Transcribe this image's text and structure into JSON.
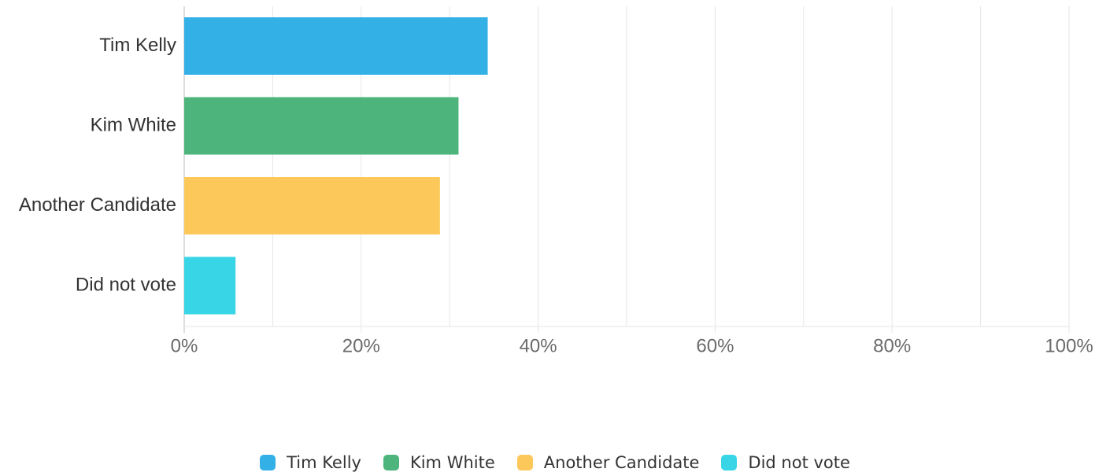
{
  "chart_data": {
    "type": "bar",
    "orientation": "horizontal",
    "categories": [
      "Tim Kelly",
      "Kim White",
      "Another Candidate",
      "Did not vote"
    ],
    "values": [
      34.3,
      31.0,
      28.9,
      5.8
    ],
    "colors": [
      "#33b0e6",
      "#4db57b",
      "#fcc85a",
      "#38d5e6"
    ],
    "xlim": [
      0,
      100
    ],
    "xticks": [
      "0%",
      "20%",
      "40%",
      "60%",
      "80%",
      "100%"
    ],
    "grid": true,
    "legend_position": "bottom"
  }
}
